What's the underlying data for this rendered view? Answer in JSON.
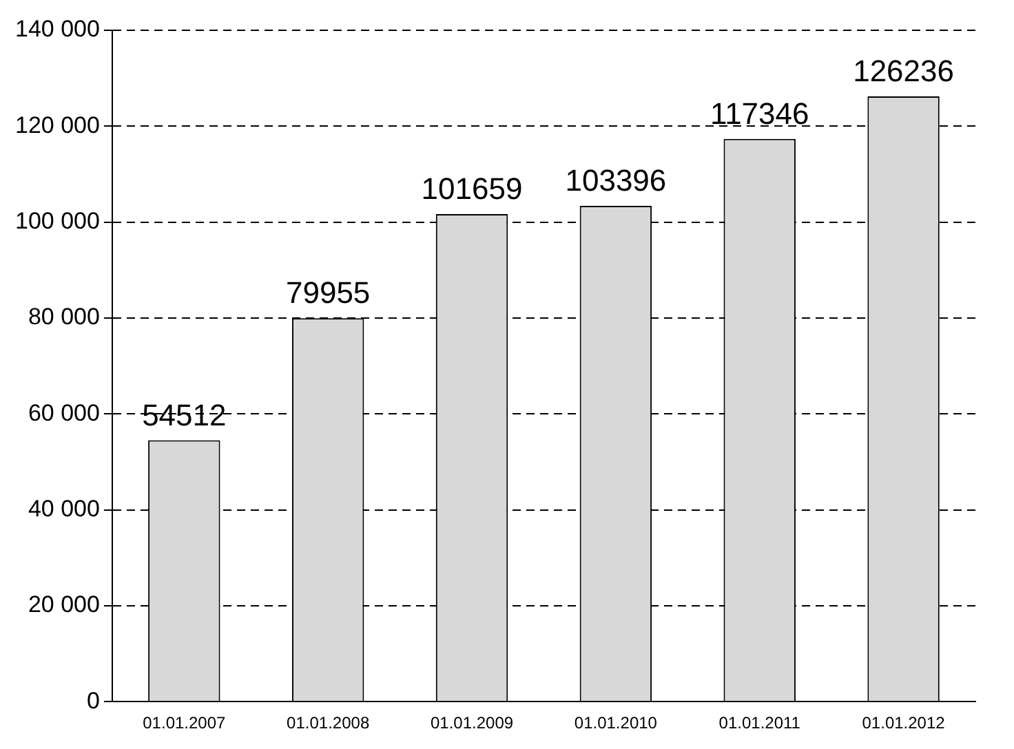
{
  "chart_data": {
    "type": "bar",
    "categories": [
      "01.01.2007",
      "01.01.2008",
      "01.01.2009",
      "01.01.2010",
      "01.01.2011",
      "01.01.2012"
    ],
    "values": [
      54512,
      79955,
      101659,
      103396,
      117346,
      126236
    ],
    "color": "#d8d8d8",
    "ylim": [
      0,
      140000
    ],
    "yticks": [
      0,
      {
        "value": 20000,
        "label": "20 000"
      },
      {
        "value": 40000,
        "label": "40 000"
      },
      {
        "value": 60000,
        "label": "60 000"
      },
      {
        "value": 80000,
        "label": "80 000"
      },
      {
        "value": 100000,
        "label": "100 000"
      },
      {
        "value": 120000,
        "label": "120 000"
      },
      {
        "value": 140000,
        "label": "140 000"
      }
    ],
    "grid": "y",
    "data_labels": true
  }
}
